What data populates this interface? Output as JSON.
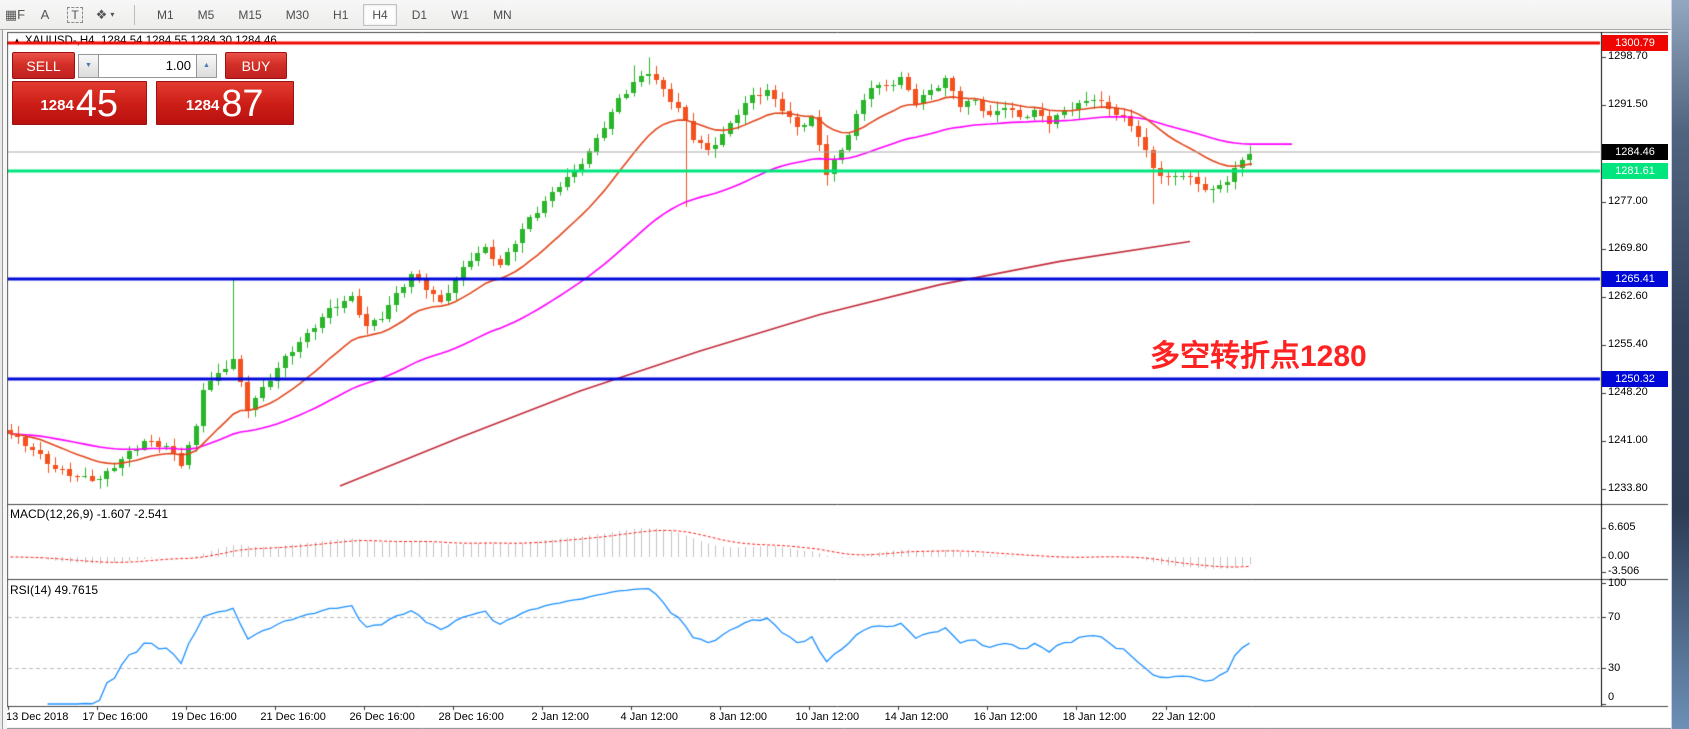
{
  "toolbar": {
    "icons": [
      {
        "name": "indicator-window-icon",
        "glyph": "▦F",
        "box": false
      },
      {
        "name": "text-label-icon",
        "glyph": "A",
        "box": false
      },
      {
        "name": "text-box-icon",
        "glyph": "T",
        "box": true
      },
      {
        "name": "objects-arrange-icon",
        "glyph": "❖",
        "box": false,
        "dropdown": true
      }
    ],
    "timeframes": [
      "M1",
      "M5",
      "M15",
      "M30",
      "H1",
      "H4",
      "D1",
      "W1",
      "MN"
    ],
    "active_timeframe": "H4"
  },
  "chart_header": {
    "collapse_arrow": "▲",
    "symbol": "XAUUSD-,H4",
    "ohlc_text": "1284.54 1284.55 1284.30 1284.46"
  },
  "trade_panel": {
    "sell_label": "SELL",
    "buy_label": "BUY",
    "volume": "1.00",
    "spin_down_glyph": "▼",
    "spin_up_glyph": "▲",
    "bid_small": "1284",
    "bid_big": "45",
    "ask_small": "1284",
    "ask_big": "87"
  },
  "annotation": {
    "text": "多空转折点1280"
  },
  "indicator_labels": {
    "macd": "MACD(12,26,9) -1.607 -2.541",
    "rsi": "RSI(14) 49.7615"
  },
  "levels": [
    {
      "price": 1300.79,
      "label": "1300.79",
      "style": "red",
      "type": "resistance-line"
    },
    {
      "price": 1284.46,
      "label": "1284.46",
      "style": "black",
      "type": "current-price"
    },
    {
      "price": 1281.61,
      "label": "1281.61",
      "style": "green",
      "type": "support-line"
    },
    {
      "price": 1265.41,
      "label": "1265.41",
      "style": "blue",
      "type": "support-line"
    },
    {
      "price": 1250.32,
      "label": "1250.32",
      "style": "blue",
      "type": "support-line"
    }
  ],
  "colors": {
    "bull": "#2bb52b",
    "bear": "#f4511e",
    "ma_fast": "#e2471d",
    "ma_mid": "#ff00ff",
    "ma_slow": "#c22c3c",
    "level_red": "#f00600",
    "level_green": "#00e57d",
    "level_blue": "#0008d8",
    "price_line_gray": "#aaaaaa",
    "macd_hist": "#c4c4c4",
    "macd_signal": "#ff2222",
    "rsi_line": "#1e90ff",
    "dashed_level": "#bbbbbb",
    "annotation_red": "#ff2222"
  },
  "chart_data": {
    "type": "candlestick",
    "symbol": "XAUUSD",
    "timeframe": "H4",
    "ohlc_header": {
      "open": 1284.54,
      "high": 1284.55,
      "low": 1284.3,
      "close": 1284.46
    },
    "y_axis": {
      "ticks": [
        1298.7,
        1291.5,
        1277.0,
        1269.8,
        1262.6,
        1255.4,
        1248.2,
        1241.0,
        1233.8
      ]
    },
    "x_axis": {
      "labels": [
        "13 Dec 2018",
        "17 Dec 16:00",
        "19 Dec 16:00",
        "21 Dec 16:00",
        "26 Dec 16:00",
        "28 Dec 16:00",
        "2 Jan 12:00",
        "4 Jan 12:00",
        "8 Jan 12:00",
        "10 Jan 12:00",
        "14 Jan 12:00",
        "16 Jan 12:00",
        "18 Jan 12:00",
        "22 Jan 12:00"
      ],
      "candles_per_label": 12
    },
    "price_path_anchors": [
      [
        0,
        1242.0
      ],
      [
        3,
        1239.6
      ],
      [
        6,
        1236.8
      ],
      [
        9,
        1235.6
      ],
      [
        12,
        1235.2
      ],
      [
        15,
        1238.2
      ],
      [
        18,
        1241.0
      ],
      [
        21,
        1240.2
      ],
      [
        23,
        1237.6
      ],
      [
        25,
        1243.0
      ],
      [
        26,
        1249.0
      ],
      [
        28,
        1251.0
      ],
      [
        30,
        1253.2
      ],
      [
        32,
        1246.0
      ],
      [
        34,
        1248.8
      ],
      [
        37,
        1253.5
      ],
      [
        40,
        1257.0
      ],
      [
        43,
        1260.8
      ],
      [
        46,
        1262.6
      ],
      [
        48,
        1258.2
      ],
      [
        50,
        1259.6
      ],
      [
        52,
        1263.0
      ],
      [
        54,
        1266.0
      ],
      [
        56,
        1264.0
      ],
      [
        58,
        1261.8
      ],
      [
        60,
        1265.4
      ],
      [
        62,
        1268.4
      ],
      [
        64,
        1270.0
      ],
      [
        66,
        1267.4
      ],
      [
        68,
        1271.0
      ],
      [
        70,
        1274.4
      ],
      [
        72,
        1277.0
      ],
      [
        74,
        1279.6
      ],
      [
        76,
        1281.6
      ],
      [
        78,
        1284.4
      ],
      [
        80,
        1288.4
      ],
      [
        82,
        1292.4
      ],
      [
        84,
        1294.8
      ],
      [
        86,
        1296.6
      ],
      [
        88,
        1293.8
      ],
      [
        90,
        1291.0
      ],
      [
        91,
        1289.0
      ],
      [
        92,
        1286.6
      ],
      [
        94,
        1284.6
      ],
      [
        96,
        1287.0
      ],
      [
        98,
        1290.4
      ],
      [
        100,
        1292.8
      ],
      [
        102,
        1293.6
      ],
      [
        104,
        1291.0
      ],
      [
        106,
        1288.0
      ],
      [
        108,
        1289.6
      ],
      [
        110,
        1281.4
      ],
      [
        112,
        1284.6
      ],
      [
        114,
        1290.0
      ],
      [
        116,
        1294.4
      ],
      [
        118,
        1294.2
      ],
      [
        120,
        1295.6
      ],
      [
        122,
        1292.0
      ],
      [
        124,
        1293.6
      ],
      [
        126,
        1295.4
      ],
      [
        128,
        1291.6
      ],
      [
        130,
        1292.2
      ],
      [
        132,
        1289.8
      ],
      [
        134,
        1291.4
      ],
      [
        136,
        1289.6
      ],
      [
        138,
        1290.6
      ],
      [
        140,
        1289.0
      ],
      [
        142,
        1290.6
      ],
      [
        144,
        1291.6
      ],
      [
        146,
        1292.6
      ],
      [
        148,
        1291.0
      ],
      [
        150,
        1289.6
      ],
      [
        152,
        1287.0
      ],
      [
        154,
        1282.0
      ],
      [
        156,
        1280.4
      ],
      [
        158,
        1281.2
      ],
      [
        160,
        1279.6
      ],
      [
        162,
        1278.6
      ],
      [
        164,
        1280.2
      ],
      [
        166,
        1283.2
      ],
      [
        167,
        1284.46
      ]
    ],
    "wick_spikes": [
      {
        "i": 12,
        "low": 1233.8
      },
      {
        "i": 30,
        "high": 1265.5
      },
      {
        "i": 84,
        "high": 1297.5
      },
      {
        "i": 86,
        "high": 1298.7
      },
      {
        "i": 91,
        "low": 1276.2
      },
      {
        "i": 110,
        "low": 1279.4
      },
      {
        "i": 154,
        "low": 1276.6
      },
      {
        "i": 162,
        "low": 1276.8
      }
    ],
    "moving_averages": [
      {
        "name": "fast-ma",
        "method": "ema",
        "period": 16
      },
      {
        "name": "mid-ma",
        "method": "ema",
        "period": 48
      },
      {
        "name": "slow-ma",
        "polyline": [
          [
            340,
            1234.2
          ],
          [
            460,
            1241.5
          ],
          [
            580,
            1248.5
          ],
          [
            700,
            1254.5
          ],
          [
            820,
            1260.0
          ],
          [
            940,
            1264.5
          ],
          [
            1060,
            1268.0
          ],
          [
            1190,
            1271.0
          ]
        ]
      }
    ],
    "macd": {
      "params": [
        12,
        26,
        9
      ],
      "current": -1.607,
      "signal_current": -2.541,
      "scale_ticks": [
        "6.605",
        "0.00",
        "-3.506"
      ]
    },
    "rsi": {
      "period": 14,
      "current": 49.7615,
      "scale_ticks": [
        "100",
        "70",
        "30",
        "0"
      ],
      "dashed_levels": [
        70,
        30
      ]
    },
    "horizontal_levels": [
      1300.79,
      1281.61,
      1265.41,
      1250.32
    ],
    "current_price": 1284.46
  }
}
